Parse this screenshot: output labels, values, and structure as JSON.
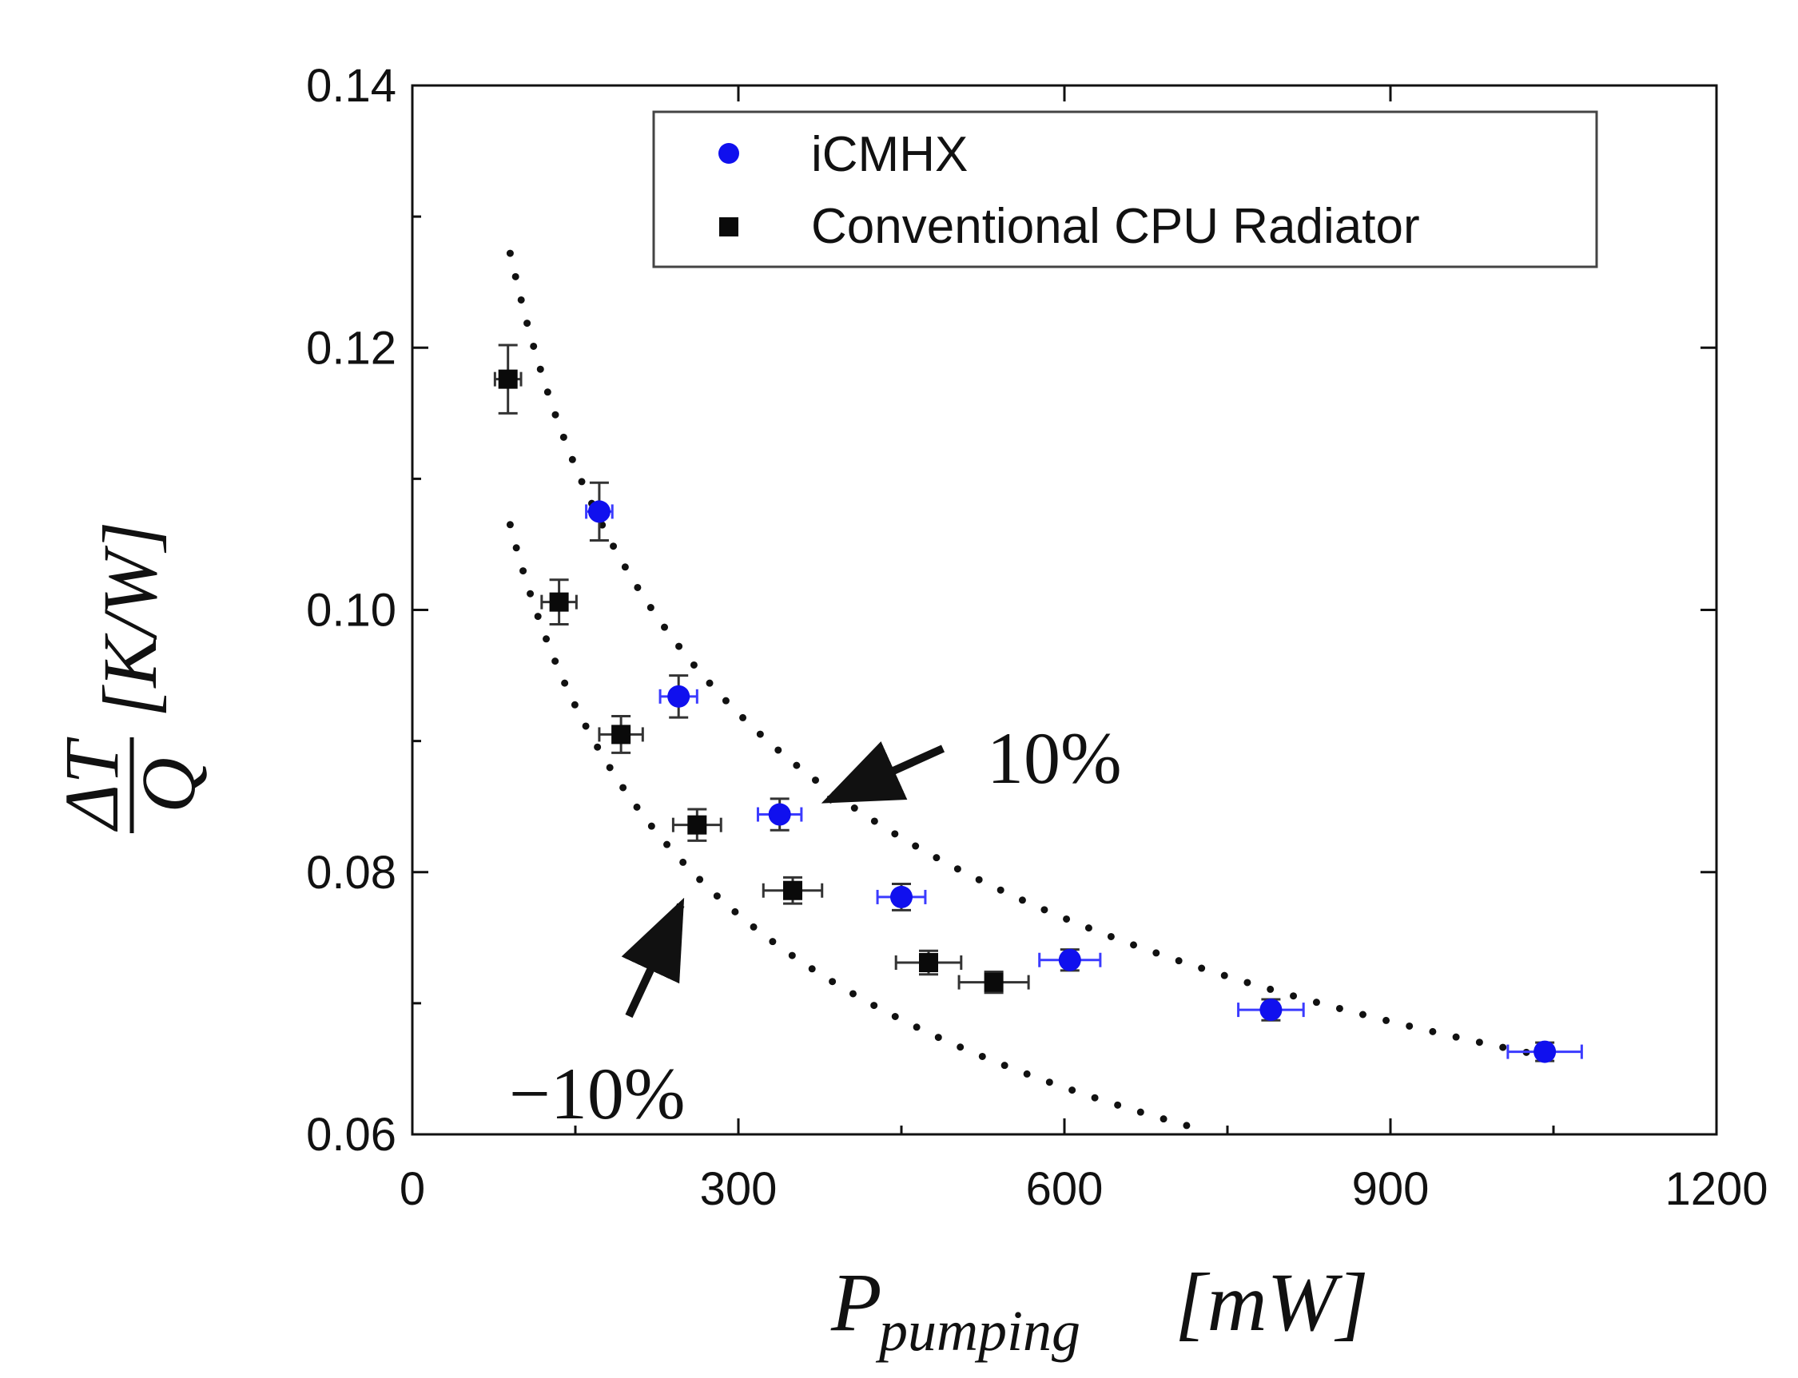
{
  "chart_data": {
    "type": "scatter",
    "title": "",
    "xlabel": {
      "main": "P",
      "subscript": "pumping",
      "unit": "[mW]"
    },
    "ylabel": {
      "numerator": "ΔT",
      "denominator": "Q",
      "unit": "[K/W]"
    },
    "xlim": [
      0,
      1200
    ],
    "ylim": [
      0.06,
      0.14
    ],
    "xticks": [
      0,
      300,
      600,
      900,
      1200
    ],
    "xtick_labels": [
      "0",
      "300",
      "600",
      "900",
      "1200"
    ],
    "yticks": [
      0.06,
      0.08,
      0.1,
      0.12,
      0.14
    ],
    "ytick_labels": [
      "0.06",
      "0.08",
      "0.10",
      "0.12",
      "0.14"
    ],
    "legend_position": "top-right",
    "series": [
      {
        "name": "iCMHX",
        "marker": "circle",
        "color": "#1010ee",
        "errorbar_color": "#3b3bff",
        "points": [
          {
            "x": 172,
            "y": 0.1075,
            "xerr": 12,
            "yerr": 0.0022
          },
          {
            "x": 245,
            "y": 0.0934,
            "xerr": 17,
            "yerr": 0.0016
          },
          {
            "x": 338,
            "y": 0.0844,
            "xerr": 20,
            "yerr": 0.0012
          },
          {
            "x": 450,
            "y": 0.0781,
            "xerr": 22,
            "yerr": 0.001
          },
          {
            "x": 605,
            "y": 0.0733,
            "xerr": 28,
            "yerr": 0.0008
          },
          {
            "x": 790,
            "y": 0.0695,
            "xerr": 30,
            "yerr": 0.0008
          },
          {
            "x": 1042,
            "y": 0.0663,
            "xerr": 34,
            "yerr": 0.0007
          }
        ]
      },
      {
        "name": "Conventional CPU Radiator",
        "marker": "square",
        "color": "#0a0a0a",
        "errorbar_color": "#333333",
        "points": [
          {
            "x": 88,
            "y": 0.1176,
            "xerr": 12,
            "yerr": 0.0026
          },
          {
            "x": 135,
            "y": 0.1006,
            "xerr": 16,
            "yerr": 0.0017
          },
          {
            "x": 192,
            "y": 0.0905,
            "xerr": 20,
            "yerr": 0.0014
          },
          {
            "x": 262,
            "y": 0.0836,
            "xerr": 22,
            "yerr": 0.0012
          },
          {
            "x": 350,
            "y": 0.0786,
            "xerr": 27,
            "yerr": 0.001
          },
          {
            "x": 475,
            "y": 0.0731,
            "xerr": 30,
            "yerr": 0.0009
          },
          {
            "x": 535,
            "y": 0.0716,
            "xerr": 32,
            "yerr": 0.0008
          }
        ]
      }
    ],
    "bound_curves": [
      {
        "name": "+10% bound",
        "style": "dotted",
        "x_start": 90,
        "x_end": 1040,
        "y_start": 0.1272,
        "y_end": 0.066
      },
      {
        "name": "-10% bound",
        "style": "dotted",
        "x_start": 90,
        "x_end": 720,
        "y_start": 0.1065,
        "y_end": 0.0605
      }
    ],
    "annotations": [
      {
        "text": "10%",
        "points_to": {
          "x": 383,
          "y": 0.0855
        }
      },
      {
        "text": "−10%",
        "points_to": {
          "x": 247,
          "y": 0.0775
        }
      }
    ]
  }
}
